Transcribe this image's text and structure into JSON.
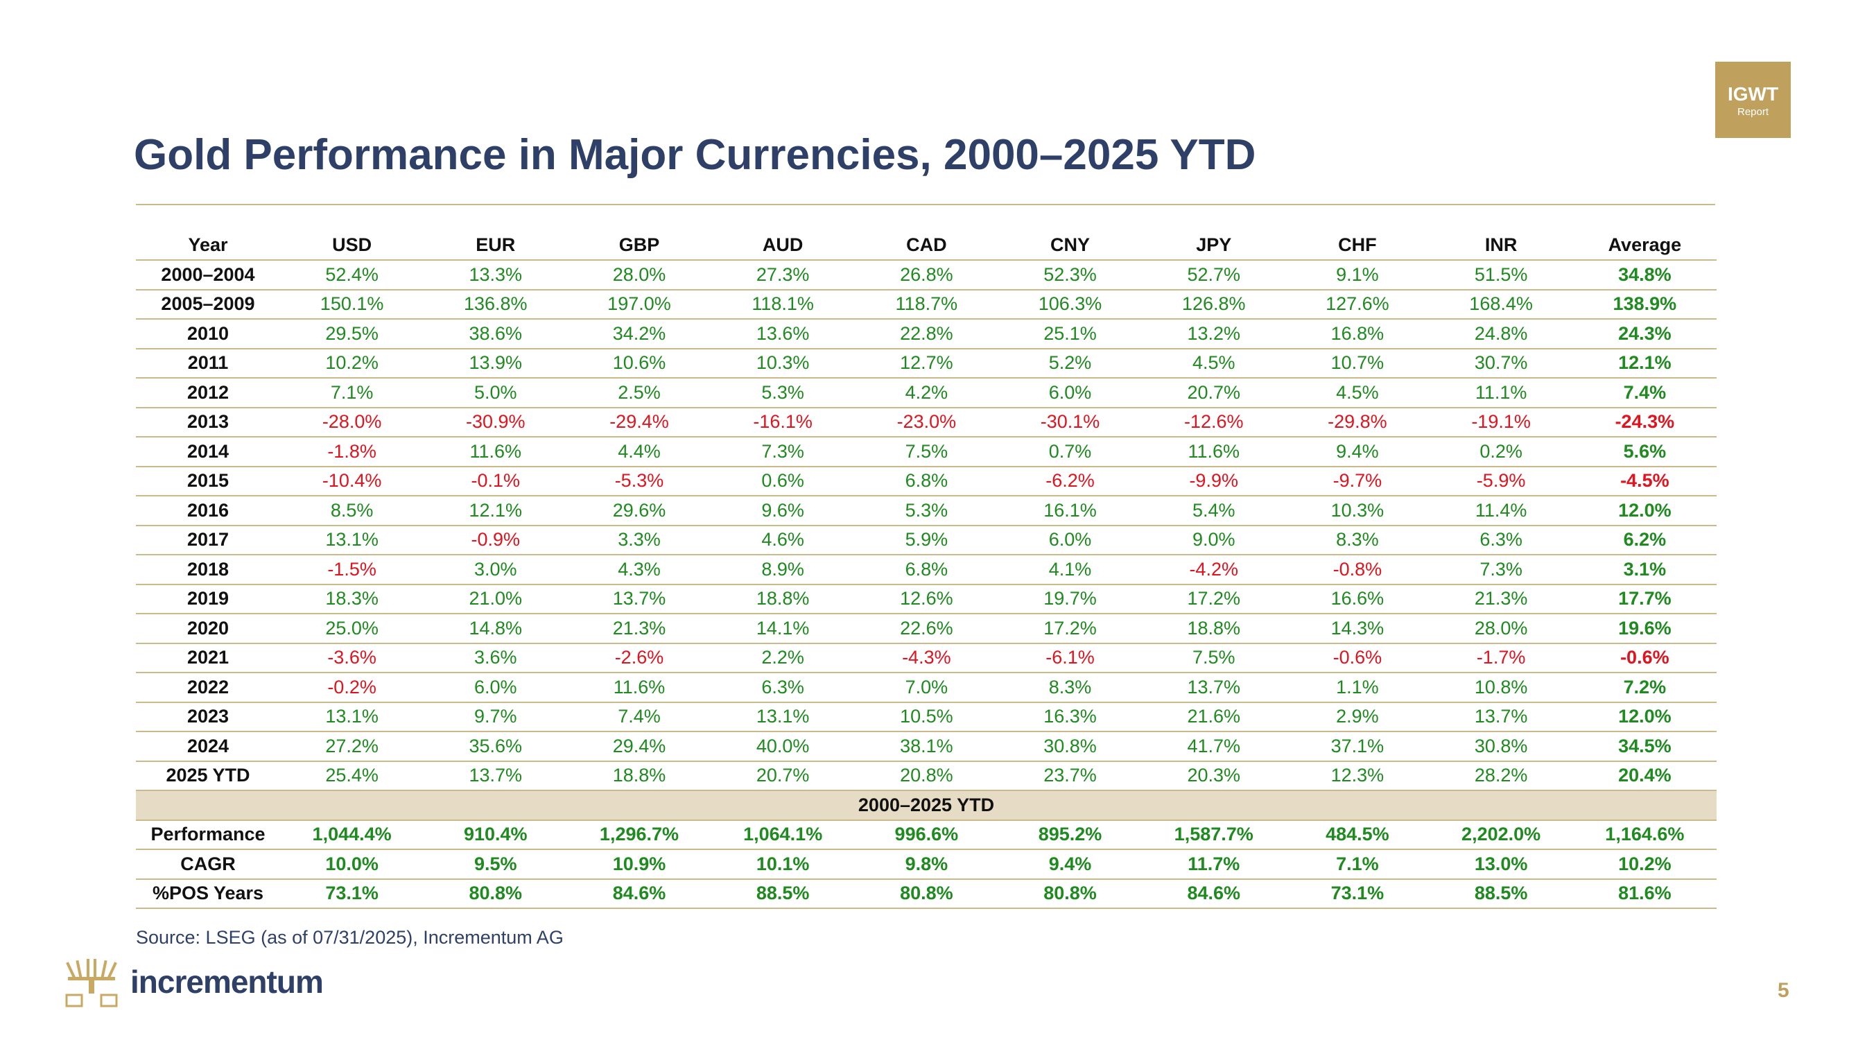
{
  "badge": {
    "line1": "IGWT",
    "line2": "Report"
  },
  "title": "Gold Performance in Major Currencies, 2000–2025 YTD",
  "table": {
    "headers": [
      "Year",
      "USD",
      "EUR",
      "GBP",
      "AUD",
      "CAD",
      "CNY",
      "JPY",
      "CHF",
      "INR",
      "Average"
    ],
    "rows": [
      [
        "2000–2004",
        "52.4%",
        "13.3%",
        "28.0%",
        "27.3%",
        "26.8%",
        "52.3%",
        "52.7%",
        "9.1%",
        "51.5%",
        "34.8%"
      ],
      [
        "2005–2009",
        "150.1%",
        "136.8%",
        "197.0%",
        "118.1%",
        "118.7%",
        "106.3%",
        "126.8%",
        "127.6%",
        "168.4%",
        "138.9%"
      ],
      [
        "2010",
        "29.5%",
        "38.6%",
        "34.2%",
        "13.6%",
        "22.8%",
        "25.1%",
        "13.2%",
        "16.8%",
        "24.8%",
        "24.3%"
      ],
      [
        "2011",
        "10.2%",
        "13.9%",
        "10.6%",
        "10.3%",
        "12.7%",
        "5.2%",
        "4.5%",
        "10.7%",
        "30.7%",
        "12.1%"
      ],
      [
        "2012",
        "7.1%",
        "5.0%",
        "2.5%",
        "5.3%",
        "4.2%",
        "6.0%",
        "20.7%",
        "4.5%",
        "11.1%",
        "7.4%"
      ],
      [
        "2013",
        "-28.0%",
        "-30.9%",
        "-29.4%",
        "-16.1%",
        "-23.0%",
        "-30.1%",
        "-12.6%",
        "-29.8%",
        "-19.1%",
        "-24.3%"
      ],
      [
        "2014",
        "-1.8%",
        "11.6%",
        "4.4%",
        "7.3%",
        "7.5%",
        "0.7%",
        "11.6%",
        "9.4%",
        "0.2%",
        "5.6%"
      ],
      [
        "2015",
        "-10.4%",
        "-0.1%",
        "-5.3%",
        "0.6%",
        "6.8%",
        "-6.2%",
        "-9.9%",
        "-9.7%",
        "-5.9%",
        "-4.5%"
      ],
      [
        "2016",
        "8.5%",
        "12.1%",
        "29.6%",
        "9.6%",
        "5.3%",
        "16.1%",
        "5.4%",
        "10.3%",
        "11.4%",
        "12.0%"
      ],
      [
        "2017",
        "13.1%",
        "-0.9%",
        "3.3%",
        "4.6%",
        "5.9%",
        "6.0%",
        "9.0%",
        "8.3%",
        "6.3%",
        "6.2%"
      ],
      [
        "2018",
        "-1.5%",
        "3.0%",
        "4.3%",
        "8.9%",
        "6.8%",
        "4.1%",
        "-4.2%",
        "-0.8%",
        "7.3%",
        "3.1%"
      ],
      [
        "2019",
        "18.3%",
        "21.0%",
        "13.7%",
        "18.8%",
        "12.6%",
        "19.7%",
        "17.2%",
        "16.6%",
        "21.3%",
        "17.7%"
      ],
      [
        "2020",
        "25.0%",
        "14.8%",
        "21.3%",
        "14.1%",
        "22.6%",
        "17.2%",
        "18.8%",
        "14.3%",
        "28.0%",
        "19.6%"
      ],
      [
        "2021",
        "-3.6%",
        "3.6%",
        "-2.6%",
        "2.2%",
        "-4.3%",
        "-6.1%",
        "7.5%",
        "-0.6%",
        "-1.7%",
        "-0.6%"
      ],
      [
        "2022",
        "-0.2%",
        "6.0%",
        "11.6%",
        "6.3%",
        "7.0%",
        "8.3%",
        "13.7%",
        "1.1%",
        "10.8%",
        "7.2%"
      ],
      [
        "2023",
        "13.1%",
        "9.7%",
        "7.4%",
        "13.1%",
        "10.5%",
        "16.3%",
        "21.6%",
        "2.9%",
        "13.7%",
        "12.0%"
      ],
      [
        "2024",
        "27.2%",
        "35.6%",
        "29.4%",
        "40.0%",
        "38.1%",
        "30.8%",
        "41.7%",
        "37.1%",
        "30.8%",
        "34.5%"
      ],
      [
        "2025 YTD",
        "25.4%",
        "13.7%",
        "18.8%",
        "20.7%",
        "20.8%",
        "23.7%",
        "20.3%",
        "12.3%",
        "28.2%",
        "20.4%"
      ]
    ],
    "section_label": "2000–2025 YTD",
    "summary_rows": [
      [
        "Performance",
        "1,044.4%",
        "910.4%",
        "1,296.7%",
        "1,064.1%",
        "996.6%",
        "895.2%",
        "1,587.7%",
        "484.5%",
        "2,202.0%",
        "1,164.6%"
      ],
      [
        "CAGR",
        "10.0%",
        "9.5%",
        "10.9%",
        "10.1%",
        "9.8%",
        "9.4%",
        "11.7%",
        "7.1%",
        "13.0%",
        "10.2%"
      ],
      [
        "%POS Years",
        "73.1%",
        "80.8%",
        "84.6%",
        "88.5%",
        "80.8%",
        "80.8%",
        "84.6%",
        "73.1%",
        "88.5%",
        "81.6%"
      ]
    ]
  },
  "source": "Source: LSEG (as of 07/31/2025), Incrementum AG",
  "logo_text": "incrementum",
  "page_number": "5",
  "colors": {
    "positive": "#1f8a1f",
    "negative": "#e0141e",
    "title": "#2e4068",
    "gold": "#bfa05c"
  }
}
